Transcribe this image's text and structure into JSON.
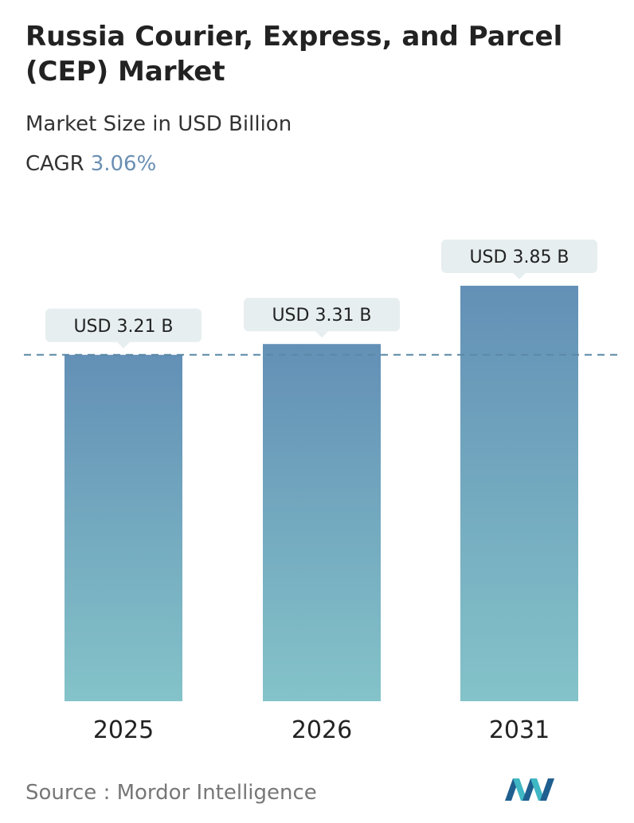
{
  "header": {
    "title": "Russia Courier, Express, and Parcel (CEP) Market",
    "subtitle": "Market Size in USD Billion",
    "cagr_label": "CAGR",
    "cagr_value": "3.06%"
  },
  "chart_data": {
    "type": "bar",
    "categories": [
      "2025",
      "2026",
      "2031"
    ],
    "values": [
      3.21,
      3.31,
      3.85
    ],
    "data_labels": [
      "USD 3.21 B",
      "USD 3.31 B",
      "USD 3.85 B"
    ],
    "title": "Russia Courier, Express, and Parcel (CEP) Market",
    "subtitle": "Market Size in USD Billion",
    "xlabel": "",
    "ylabel": "",
    "grid": false,
    "legend": "none",
    "reference_line": {
      "value": 3.21,
      "style": "dashed"
    },
    "colors": {
      "bar_top": "#6390b6",
      "bar_bottom": "#84c3c9",
      "label_bg": "#e6eef0",
      "reference_line": "#5a88a6"
    }
  },
  "footer": {
    "source": "Source :  Mordor Intelligence",
    "logo_icon": "mordor-intelligence-logo-icon"
  }
}
